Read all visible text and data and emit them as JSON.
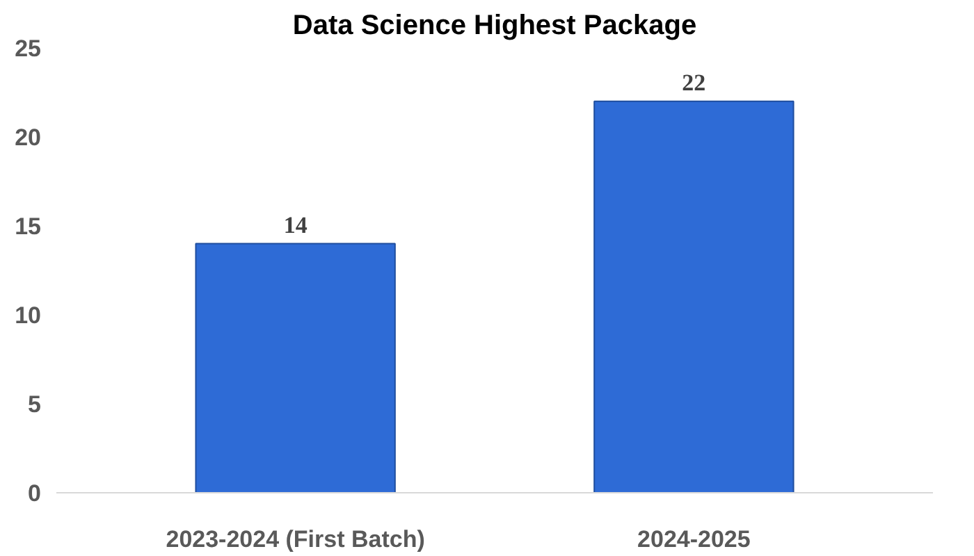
{
  "chart_data": {
    "type": "bar",
    "title": "Data Science Highest Package",
    "categories": [
      "2023-2024 (First Batch)",
      "2024-2025"
    ],
    "values": [
      14,
      22
    ],
    "color": "#2e6bd6",
    "ylim": [
      0,
      25
    ],
    "yticks": [
      0,
      5,
      10,
      15,
      20,
      25
    ],
    "grid": false,
    "data_labels": true
  }
}
